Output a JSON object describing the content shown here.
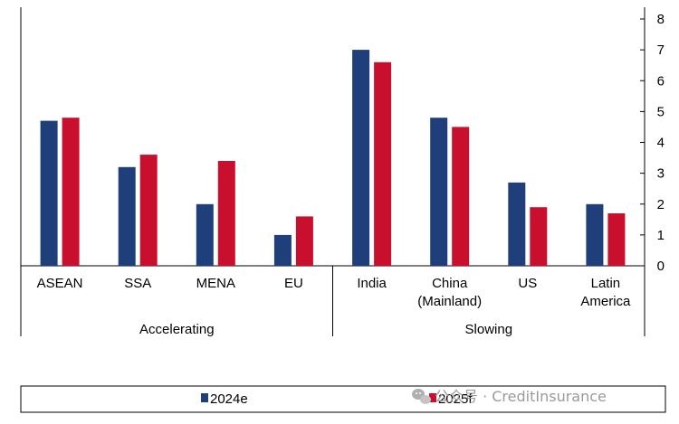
{
  "chart_data": {
    "type": "bar",
    "categories": [
      "ASEAN",
      "SSA",
      "MENA",
      "EU",
      "India",
      "China (Mainland)",
      "US",
      "Latin America"
    ],
    "category_label_lines": [
      [
        "ASEAN"
      ],
      [
        "SSA"
      ],
      [
        "MENA"
      ],
      [
        "EU"
      ],
      [
        "India"
      ],
      [
        "China",
        "(Mainland)"
      ],
      [
        "US"
      ],
      [
        "Latin",
        "America"
      ]
    ],
    "groups": [
      {
        "label": "Accelerating",
        "categories": [
          "ASEAN",
          "SSA",
          "MENA",
          "EU"
        ]
      },
      {
        "label": "Slowing",
        "categories": [
          "India",
          "China (Mainland)",
          "US",
          "Latin America"
        ]
      }
    ],
    "series": [
      {
        "name": "2024e",
        "color": "#1f3f7a",
        "values": [
          4.7,
          3.2,
          2.0,
          1.0,
          7.0,
          4.8,
          2.7,
          2.0
        ]
      },
      {
        "name": "2025f",
        "color": "#c8102e",
        "values": [
          4.8,
          3.6,
          3.4,
          1.6,
          6.6,
          4.5,
          1.9,
          1.7
        ]
      }
    ],
    "ylim": [
      0,
      8
    ],
    "yticks": [
      "0",
      "1",
      "2",
      "3",
      "4",
      "5",
      "6",
      "7",
      "8"
    ],
    "y_axis_side": "right",
    "grid": false,
    "legend_position": "bottom",
    "title": "",
    "xlabel": "",
    "ylabel": ""
  },
  "watermark": "公众号 · CreditInsurance"
}
